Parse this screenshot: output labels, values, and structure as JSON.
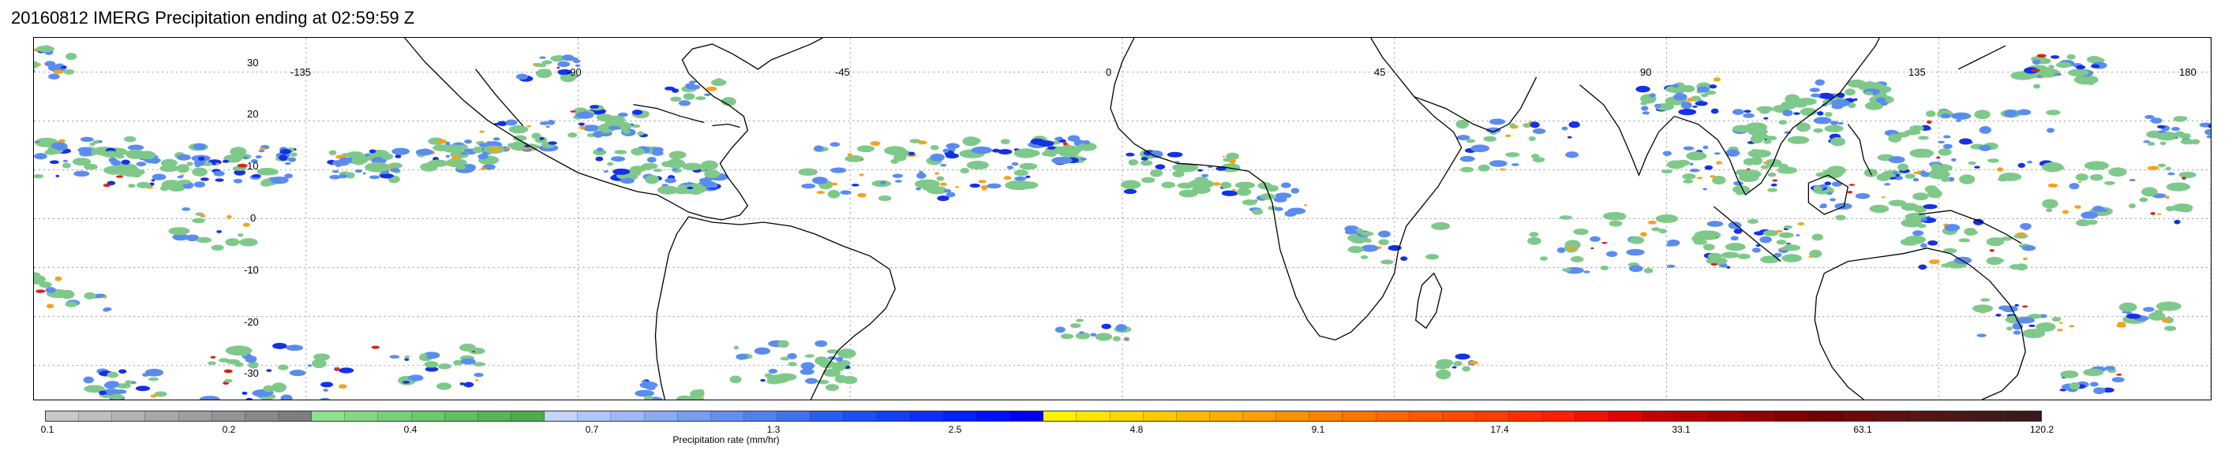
{
  "title": "20160812 IMERG Precipitation ending at 02:59:59 Z",
  "map": {
    "lat_labels": [
      "30",
      "20",
      "10",
      "0",
      "-10",
      "-20",
      "-30"
    ],
    "lat_values": [
      30,
      20,
      10,
      0,
      -10,
      -20,
      -30
    ],
    "lon_labels": [
      "-135",
      "-90",
      "-45",
      "0",
      "45",
      "90",
      "135",
      "180"
    ],
    "lon_values": [
      -135,
      -90,
      -45,
      0,
      45,
      90,
      135,
      180
    ],
    "lon_range": [
      -180,
      180
    ],
    "lat_range": [
      -37,
      37
    ],
    "grid": "dotted",
    "coastline_color": "#000000"
  },
  "colorbar": {
    "label": "Precipitation rate (mm/hr)",
    "tick_labels": [
      "0.1",
      "0.2",
      "0.4",
      "0.7",
      "1.3",
      "2.5",
      "4.8",
      "9.1",
      "17.4",
      "33.1",
      "63.1",
      "120.2"
    ],
    "colors": [
      "#c8c8c8",
      "#bdbdbd",
      "#b3b3b3",
      "#a8a8a8",
      "#9e9e9e",
      "#939393",
      "#898989",
      "#7e7e7e",
      "#8fe08f",
      "#84d884",
      "#79cf79",
      "#6ec66e",
      "#63bd63",
      "#58b458",
      "#4dab4d",
      "#c4d4fb",
      "#b1c6f9",
      "#9eb8f7",
      "#8baaf5",
      "#789cf3",
      "#658ef1",
      "#5280ef",
      "#3f72ed",
      "#2a5cf0",
      "#1f4df3",
      "#143ef6",
      "#0a2ff9",
      "#0520fc",
      "#0011ff",
      "#0000f0",
      "#fff200",
      "#ffe400",
      "#ffd600",
      "#ffc800",
      "#ffba00",
      "#ffac00",
      "#ff9e00",
      "#ff9000",
      "#ff8200",
      "#ff7400",
      "#ff6600",
      "#ff5800",
      "#ff4a00",
      "#ff3c00",
      "#ff2e00",
      "#ff2000",
      "#f01200",
      "#e00400",
      "#c40000",
      "#b40000",
      "#a40000",
      "#940000",
      "#840000",
      "#740000",
      "#6a0a0a",
      "#601010",
      "#561414",
      "#4c1818",
      "#421a1a",
      "#381a1a"
    ]
  },
  "precip_palette": {
    "light": "#7ec98a",
    "moderate": "#5a8cf0",
    "heavy": "#1430e8",
    "intense": "#f5a21c",
    "extreme": "#d8241c"
  }
}
